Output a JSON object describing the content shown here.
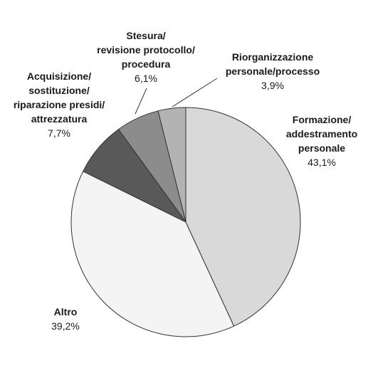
{
  "chart_data": {
    "type": "pie",
    "categories": [
      "Formazione/\naddestramento\npersonale",
      "Altro",
      "Acquisizione/\nsostituzione/\nriparazione presidi/\nattrezzatura",
      "Stesura/\nrevisione protocollo/\nprocedura",
      "Riorganizzazione\npersonale/processo"
    ],
    "values": [
      43.1,
      39.2,
      7.7,
      6.1,
      3.9
    ],
    "value_labels": [
      "43,1%",
      "39,2%",
      "7,7%",
      "6,1%",
      "3,9%"
    ],
    "colors": [
      "#d9d9d9",
      "#f4f4f4",
      "#595959",
      "#8c8c8c",
      "#b3b3b3"
    ]
  }
}
